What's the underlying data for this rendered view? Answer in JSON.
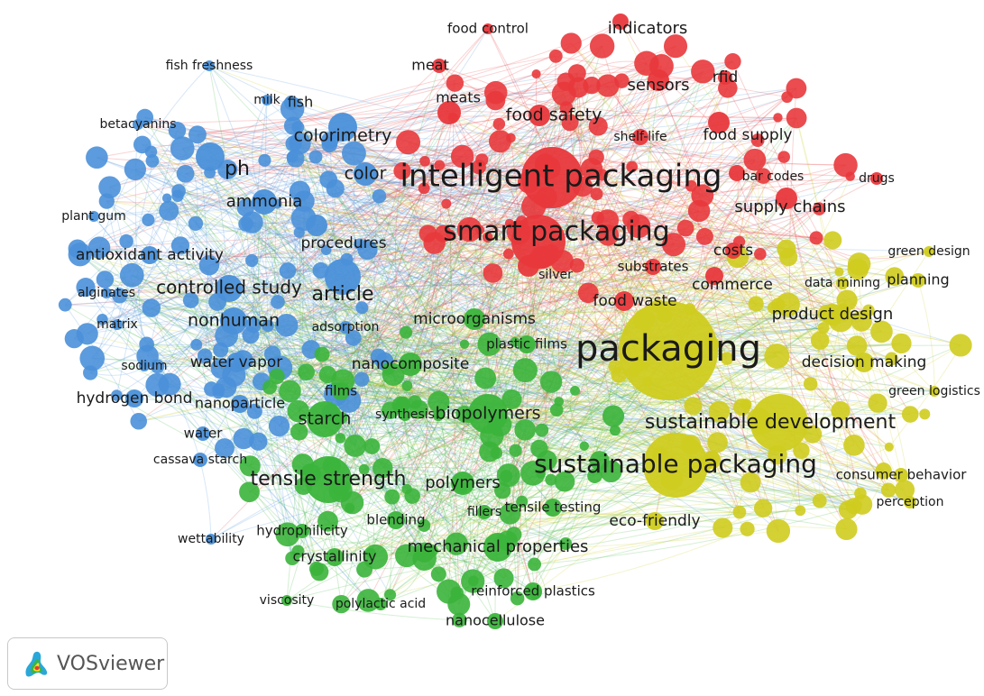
{
  "app_badge": {
    "label": "VOSviewer",
    "icon": "vosviewer-logo-icon"
  },
  "clusters": {
    "blue": {
      "color": "#4a90d9"
    },
    "red": {
      "color": "#e8383c"
    },
    "green": {
      "color": "#3bb43b"
    },
    "yellow": {
      "color": "#cfcc1f"
    }
  },
  "terms": [
    {
      "label": "intelligent packaging",
      "cluster": "red"
    },
    {
      "label": "smart packaging",
      "cluster": "red"
    },
    {
      "label": "food safety",
      "cluster": "red"
    },
    {
      "label": "food control",
      "cluster": "red"
    },
    {
      "label": "indicators",
      "cluster": "red"
    },
    {
      "label": "meat",
      "cluster": "red"
    },
    {
      "label": "meats",
      "cluster": "red"
    },
    {
      "label": "sensors",
      "cluster": "red"
    },
    {
      "label": "rfid",
      "cluster": "red"
    },
    {
      "label": "shelf-life",
      "cluster": "red"
    },
    {
      "label": "food supply",
      "cluster": "red"
    },
    {
      "label": "bar codes",
      "cluster": "red"
    },
    {
      "label": "drugs",
      "cluster": "red"
    },
    {
      "label": "supply chains",
      "cluster": "red"
    },
    {
      "label": "costs",
      "cluster": "red"
    },
    {
      "label": "substrates",
      "cluster": "red"
    },
    {
      "label": "silver",
      "cluster": "red"
    },
    {
      "label": "commerce",
      "cluster": "red"
    },
    {
      "label": "food waste",
      "cluster": "red"
    },
    {
      "label": "fish freshness",
      "cluster": "blue"
    },
    {
      "label": "milk",
      "cluster": "blue"
    },
    {
      "label": "fish",
      "cluster": "blue"
    },
    {
      "label": "betacyanins",
      "cluster": "blue"
    },
    {
      "label": "colorimetry",
      "cluster": "blue"
    },
    {
      "label": "color",
      "cluster": "blue"
    },
    {
      "label": "ph",
      "cluster": "blue"
    },
    {
      "label": "ammonia",
      "cluster": "blue"
    },
    {
      "label": "plant gum",
      "cluster": "blue"
    },
    {
      "label": "procedures",
      "cluster": "blue"
    },
    {
      "label": "antioxidant activity",
      "cluster": "blue"
    },
    {
      "label": "alginates",
      "cluster": "blue"
    },
    {
      "label": "controlled study",
      "cluster": "blue"
    },
    {
      "label": "article",
      "cluster": "blue"
    },
    {
      "label": "matrix",
      "cluster": "blue"
    },
    {
      "label": "nonhuman",
      "cluster": "blue"
    },
    {
      "label": "adsorption",
      "cluster": "blue"
    },
    {
      "label": "sodium",
      "cluster": "blue"
    },
    {
      "label": "water vapor",
      "cluster": "blue"
    },
    {
      "label": "hydrogen bond",
      "cluster": "blue"
    },
    {
      "label": "nanoparticle",
      "cluster": "blue"
    },
    {
      "label": "water",
      "cluster": "blue"
    },
    {
      "label": "cassava starch",
      "cluster": "blue"
    },
    {
      "label": "wettability",
      "cluster": "blue"
    },
    {
      "label": "microorganisms",
      "cluster": "green"
    },
    {
      "label": "plastic films",
      "cluster": "green"
    },
    {
      "label": "nanocomposite",
      "cluster": "green"
    },
    {
      "label": "films",
      "cluster": "green"
    },
    {
      "label": "starch",
      "cluster": "green"
    },
    {
      "label": "synthesis",
      "cluster": "green"
    },
    {
      "label": "biopolymers",
      "cluster": "green"
    },
    {
      "label": "tensile strength",
      "cluster": "green"
    },
    {
      "label": "polymers",
      "cluster": "green"
    },
    {
      "label": "fillers",
      "cluster": "green"
    },
    {
      "label": "tensile testing",
      "cluster": "green"
    },
    {
      "label": "hydrophilicity",
      "cluster": "green"
    },
    {
      "label": "blending",
      "cluster": "green"
    },
    {
      "label": "crystallinity",
      "cluster": "green"
    },
    {
      "label": "mechanical properties",
      "cluster": "green"
    },
    {
      "label": "viscosity",
      "cluster": "green"
    },
    {
      "label": "polylactic acid",
      "cluster": "green"
    },
    {
      "label": "reinforced plastics",
      "cluster": "green"
    },
    {
      "label": "nanocellulose",
      "cluster": "green"
    },
    {
      "label": "packaging",
      "cluster": "yellow"
    },
    {
      "label": "sustainable development",
      "cluster": "yellow"
    },
    {
      "label": "sustainable packaging",
      "cluster": "yellow"
    },
    {
      "label": "green design",
      "cluster": "yellow"
    },
    {
      "label": "planning",
      "cluster": "yellow"
    },
    {
      "label": "data mining",
      "cluster": "yellow"
    },
    {
      "label": "product design",
      "cluster": "yellow"
    },
    {
      "label": "decision making",
      "cluster": "yellow"
    },
    {
      "label": "green logistics",
      "cluster": "yellow"
    },
    {
      "label": "consumer behavior",
      "cluster": "yellow"
    },
    {
      "label": "perception",
      "cluster": "yellow"
    },
    {
      "label": "eco-friendly",
      "cluster": "yellow"
    }
  ]
}
